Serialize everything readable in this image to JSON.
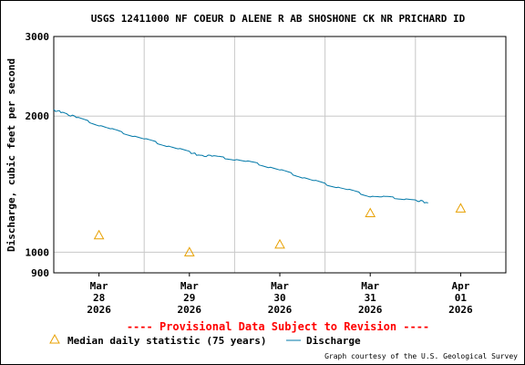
{
  "chart_data": {
    "type": "line",
    "title": "USGS 12411000 NF COEUR D ALENE R AB SHOSHONE CK NR PRICHARD ID",
    "ylabel": "Discharge, cubic feet per second",
    "xlabel": "",
    "y_scale": "log",
    "ylim": [
      900,
      3000
    ],
    "xlim": [
      0,
      5
    ],
    "grid": true,
    "y_ticks": [
      {
        "value": 3000,
        "label": "3000"
      },
      {
        "value": 2000,
        "label": "2000"
      },
      {
        "value": 1000,
        "label": "1000"
      },
      {
        "value": 900,
        "label": "900"
      }
    ],
    "x_ticks": [
      {
        "x": 0.5,
        "lines": [
          "Mar",
          "28",
          "2026"
        ]
      },
      {
        "x": 1.5,
        "lines": [
          "Mar",
          "29",
          "2026"
        ]
      },
      {
        "x": 2.5,
        "lines": [
          "Mar",
          "30",
          "2026"
        ]
      },
      {
        "x": 3.5,
        "lines": [
          "Mar",
          "31",
          "2026"
        ]
      },
      {
        "x": 4.5,
        "lines": [
          "Apr",
          "01",
          "2026"
        ]
      }
    ],
    "series": [
      {
        "name": "Discharge",
        "color": "#0078a8",
        "style": "line",
        "x": [
          0.0,
          0.1,
          0.25,
          0.5,
          0.75,
          1.0,
          1.25,
          1.5,
          1.6,
          1.75,
          2.0,
          2.25,
          2.5,
          2.75,
          3.0,
          3.25,
          3.5,
          3.75,
          4.0,
          4.14
        ],
        "y": [
          2060,
          2040,
          1985,
          1910,
          1840,
          1780,
          1720,
          1665,
          1640,
          1630,
          1605,
          1570,
          1520,
          1465,
          1415,
          1375,
          1330,
          1320,
          1305,
          1285
        ]
      },
      {
        "name": "Median daily statistic (75 years)",
        "color": "#e8a000",
        "style": "triangle",
        "x": [
          0.5,
          1.5,
          2.5,
          3.5,
          4.5
        ],
        "y": [
          1090,
          1000,
          1040,
          1220,
          1250
        ]
      }
    ]
  },
  "notes": {
    "provisional": "---- Provisional Data Subject to Revision ----",
    "credit": "Graph courtesy of the U.S. Geological Survey"
  },
  "legend": {
    "median_label": "Median daily statistic (75 years)",
    "discharge_label": "Discharge"
  }
}
